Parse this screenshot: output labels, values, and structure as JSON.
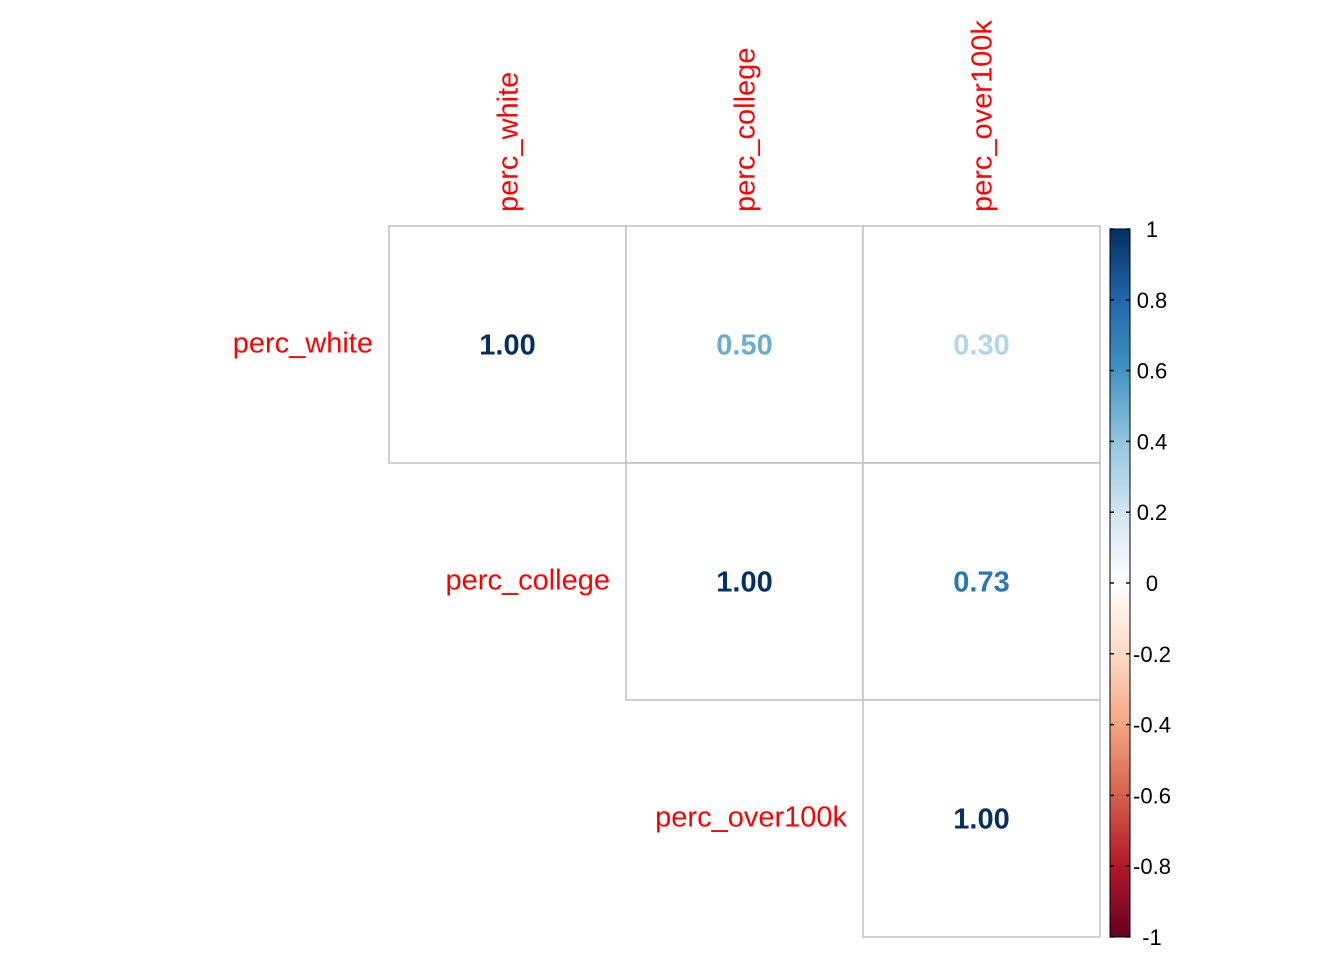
{
  "chart_data": {
    "type": "heatmap",
    "title": "",
    "variables": [
      "perc_white",
      "perc_college",
      "perc_over100k"
    ],
    "layout": "upper-triangle",
    "label_color": "#ff0000",
    "cells": [
      {
        "row": "perc_white",
        "col": "perc_white",
        "value": 1.0,
        "label": "1.00"
      },
      {
        "row": "perc_white",
        "col": "perc_college",
        "value": 0.5,
        "label": "0.50"
      },
      {
        "row": "perc_white",
        "col": "perc_over100k",
        "value": 0.3,
        "label": "0.30"
      },
      {
        "row": "perc_college",
        "col": "perc_college",
        "value": 1.0,
        "label": "1.00"
      },
      {
        "row": "perc_college",
        "col": "perc_over100k",
        "value": 0.73,
        "label": "0.73"
      },
      {
        "row": "perc_over100k",
        "col": "perc_over100k",
        "value": 1.0,
        "label": "1.00"
      }
    ],
    "colorbar": {
      "range": [
        -1,
        1
      ],
      "ticks": [
        "1",
        "0.8",
        "0.6",
        "0.4",
        "0.2",
        "0",
        "-0.2",
        "-0.4",
        "-0.6",
        "-0.8",
        "-1"
      ],
      "tick_values": [
        1,
        0.8,
        0.6,
        0.4,
        0.2,
        0,
        -0.2,
        -0.4,
        -0.6,
        -0.8,
        -1
      ],
      "colors": [
        "#67001f",
        "#b2182b",
        "#d6604d",
        "#f4a582",
        "#fddbc7",
        "#ffffff",
        "#d1e5f0",
        "#92c5de",
        "#4393c3",
        "#2166ac",
        "#053061"
      ]
    }
  }
}
